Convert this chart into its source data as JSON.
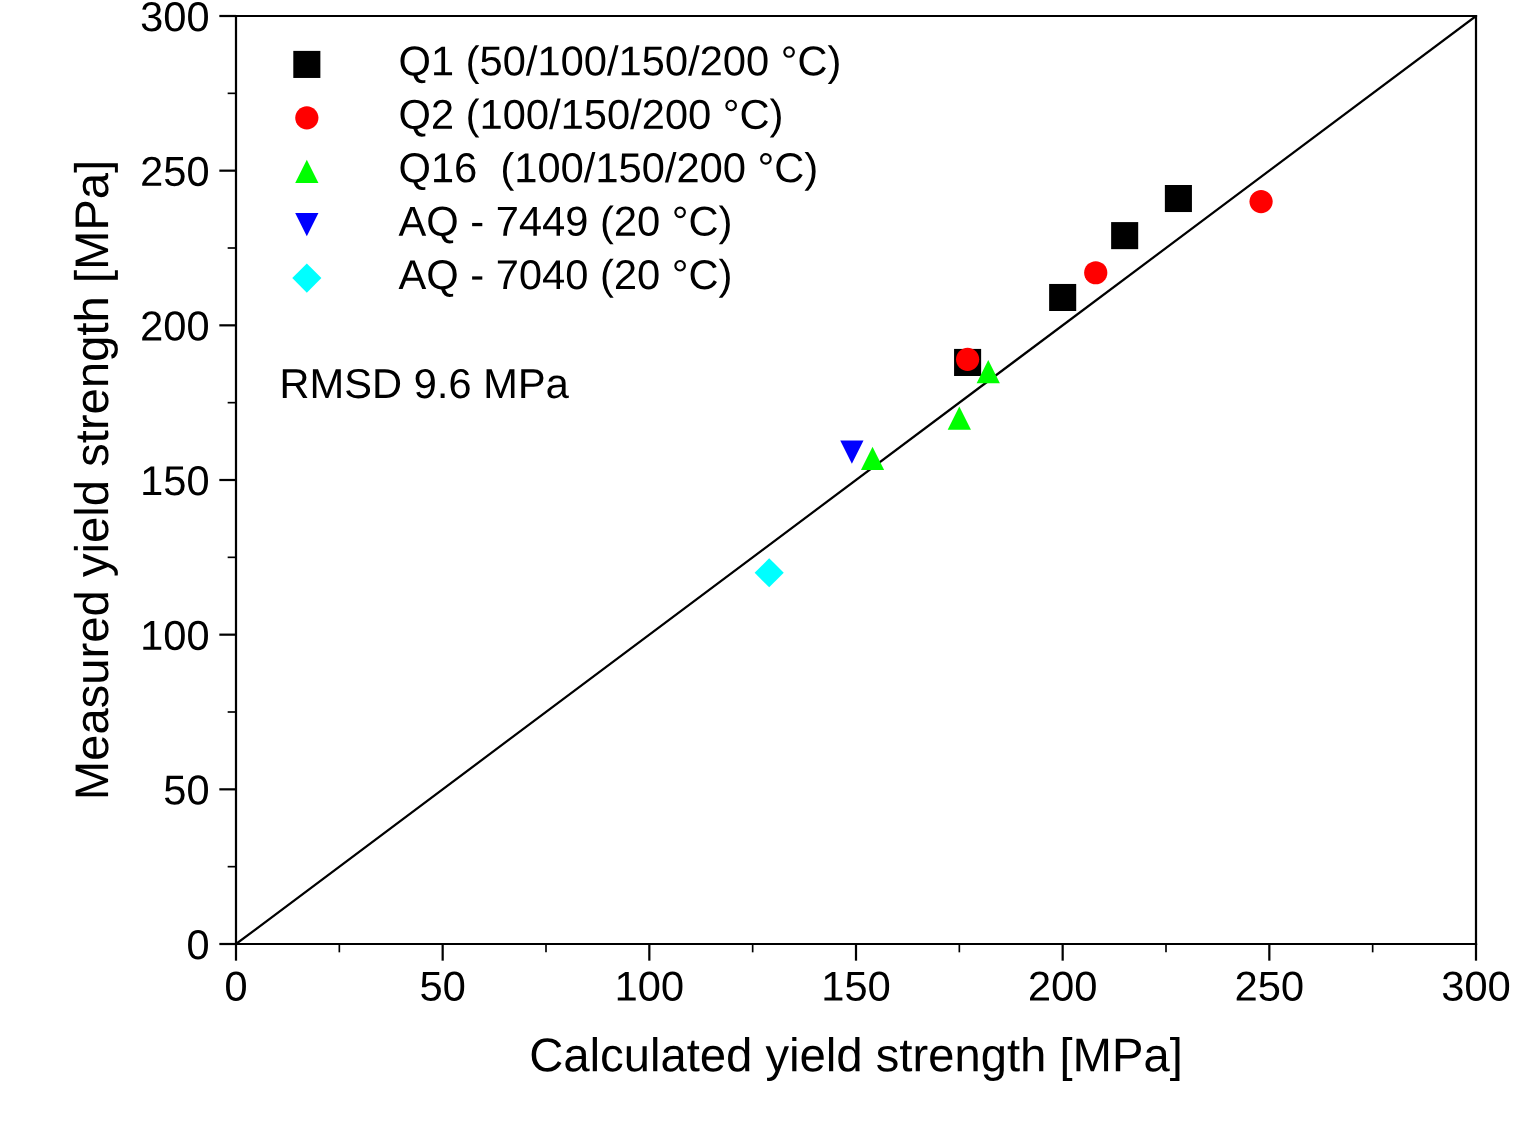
{
  "chart_data": {
    "type": "scatter",
    "xlabel": "Calculated yield strength [MPa]",
    "ylabel": "Measured yield strength [MPa]",
    "xlim": [
      0,
      300
    ],
    "ylim": [
      0,
      300
    ],
    "xticks": [
      0,
      50,
      100,
      150,
      200,
      250,
      300
    ],
    "yticks": [
      0,
      50,
      100,
      150,
      200,
      250,
      300
    ],
    "grid": false,
    "legend": "top left",
    "annotations": [
      "RMSD 9.6 MPa"
    ],
    "series": [
      {
        "name": "Q1 (50/100/150/200 °C)",
        "color": "#000000",
        "marker": "square",
        "x": [
          177,
          200,
          215,
          228
        ],
        "values": [
          188,
          209,
          229,
          241
        ]
      },
      {
        "name": "Q2 (100/150/200 °C)",
        "color": "#ff0000",
        "marker": "circle",
        "x": [
          177,
          208,
          248
        ],
        "values": [
          189,
          217,
          240
        ]
      },
      {
        "name": "Q16  (100/150/200 °C)",
        "color": "#00ff00",
        "marker": "triangle",
        "x": [
          154,
          175,
          182
        ],
        "values": [
          157,
          170,
          185
        ]
      },
      {
        "name": "AQ - 7449 (20 °C)",
        "color": "#0000ff",
        "marker": "triangle_down",
        "x": [
          149
        ],
        "values": [
          159
        ]
      },
      {
        "name": "AQ - 7040 (20 °C)",
        "color": "#00ffff",
        "marker": "diamond",
        "x": [
          129
        ],
        "values": [
          120
        ]
      },
      {
        "type": "line",
        "color": "#000000",
        "marker": "none",
        "line_style": "solid",
        "x": [
          0,
          300
        ],
        "values": [
          0,
          300
        ]
      }
    ]
  }
}
